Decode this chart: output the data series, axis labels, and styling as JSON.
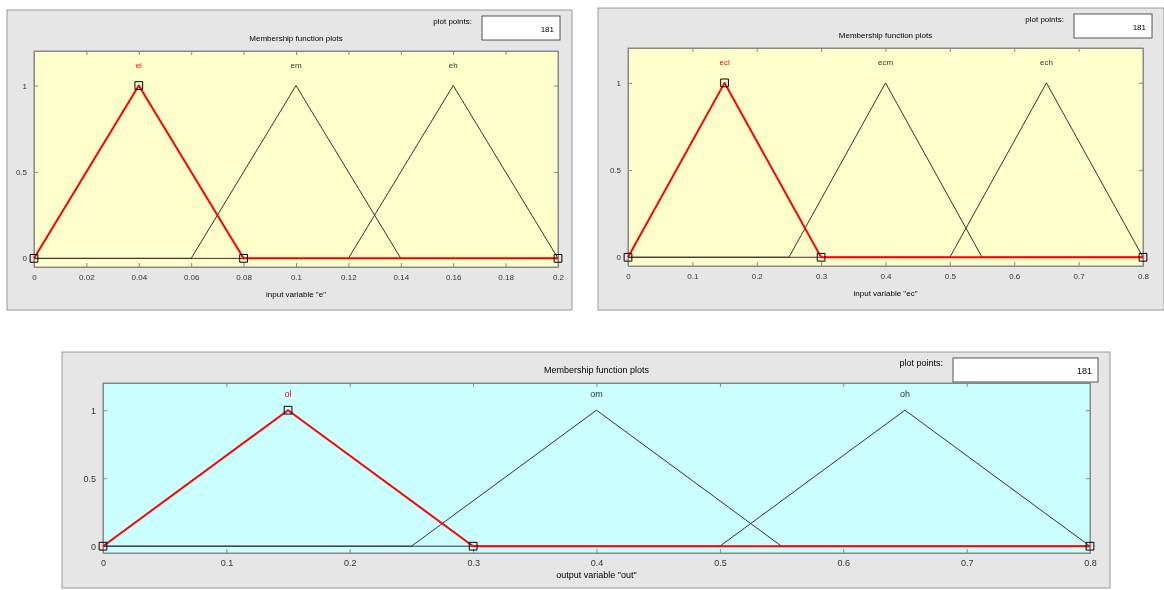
{
  "chart_data": [
    {
      "type": "line",
      "title": "Membership function plots",
      "xlabel": "input variable \"e\"",
      "xlim": [
        0,
        0.2
      ],
      "xticks": [
        0,
        0.02,
        0.04,
        0.06,
        0.08,
        0.1,
        0.12,
        0.14,
        0.16,
        0.18,
        0.2
      ],
      "ylim": [
        -0.05,
        1.2
      ],
      "yticks": [
        0,
        0.5,
        1
      ],
      "grid": false,
      "annotations": [
        "plot points:",
        "181"
      ],
      "series": [
        {
          "name": "el",
          "color": "#ff0000",
          "marker": "square",
          "x": [
            0,
            0.04,
            0.08,
            0.2
          ],
          "values": [
            0,
            1,
            0,
            0
          ]
        },
        {
          "name": "em",
          "color": "#333333",
          "marker": "none",
          "x": [
            0,
            0.06,
            0.1,
            0.14,
            0.2
          ],
          "values": [
            0,
            0,
            1,
            0,
            0
          ]
        },
        {
          "name": "eh",
          "color": "#333333",
          "marker": "none",
          "x": [
            0,
            0.12,
            0.16,
            0.2
          ],
          "values": [
            0,
            0,
            1,
            0
          ]
        }
      ]
    },
    {
      "type": "line",
      "title": "Membership function plots",
      "xlabel": "input variable \"ec\"",
      "xlim": [
        0,
        0.8
      ],
      "xticks": [
        0,
        0.1,
        0.2,
        0.3,
        0.4,
        0.5,
        0.6,
        0.7,
        0.8
      ],
      "ylim": [
        -0.05,
        1.2
      ],
      "yticks": [
        0,
        0.5,
        1
      ],
      "grid": false,
      "annotations": [
        "plot points:",
        "181"
      ],
      "series": [
        {
          "name": "ecl",
          "color": "#ff0000",
          "marker": "square",
          "x": [
            0,
            0.15,
            0.3,
            0.8
          ],
          "values": [
            0,
            1,
            0,
            0
          ]
        },
        {
          "name": "ecm",
          "color": "#333333",
          "marker": "none",
          "x": [
            0,
            0.25,
            0.4,
            0.55,
            0.8
          ],
          "values": [
            0,
            0,
            1,
            0,
            0
          ]
        },
        {
          "name": "ech",
          "color": "#333333",
          "marker": "none",
          "x": [
            0,
            0.5,
            0.65,
            0.8
          ],
          "values": [
            0,
            0,
            1,
            0
          ]
        }
      ]
    },
    {
      "type": "line",
      "title": "Membership function plots",
      "xlabel": "output variable \"out\"",
      "xlim": [
        0,
        0.8
      ],
      "xticks": [
        0,
        0.1,
        0.2,
        0.3,
        0.4,
        0.5,
        0.6,
        0.7,
        0.8
      ],
      "ylim": [
        -0.05,
        1.2
      ],
      "yticks": [
        0,
        0.5,
        1
      ],
      "grid": false,
      "annotations": [
        "plot points:",
        "181"
      ],
      "series": [
        {
          "name": "ol",
          "color": "#ff0000",
          "marker": "square",
          "x": [
            0,
            0.15,
            0.3,
            0.8
          ],
          "values": [
            0,
            1,
            0,
            0
          ]
        },
        {
          "name": "om",
          "color": "#333333",
          "marker": "none",
          "x": [
            0,
            0.25,
            0.4,
            0.55,
            0.8
          ],
          "values": [
            0,
            0,
            1,
            0,
            0
          ]
        },
        {
          "name": "oh",
          "color": "#333333",
          "marker": "none",
          "x": [
            0,
            0.5,
            0.65,
            0.8
          ],
          "values": [
            0,
            0,
            1,
            0
          ]
        }
      ]
    }
  ]
}
